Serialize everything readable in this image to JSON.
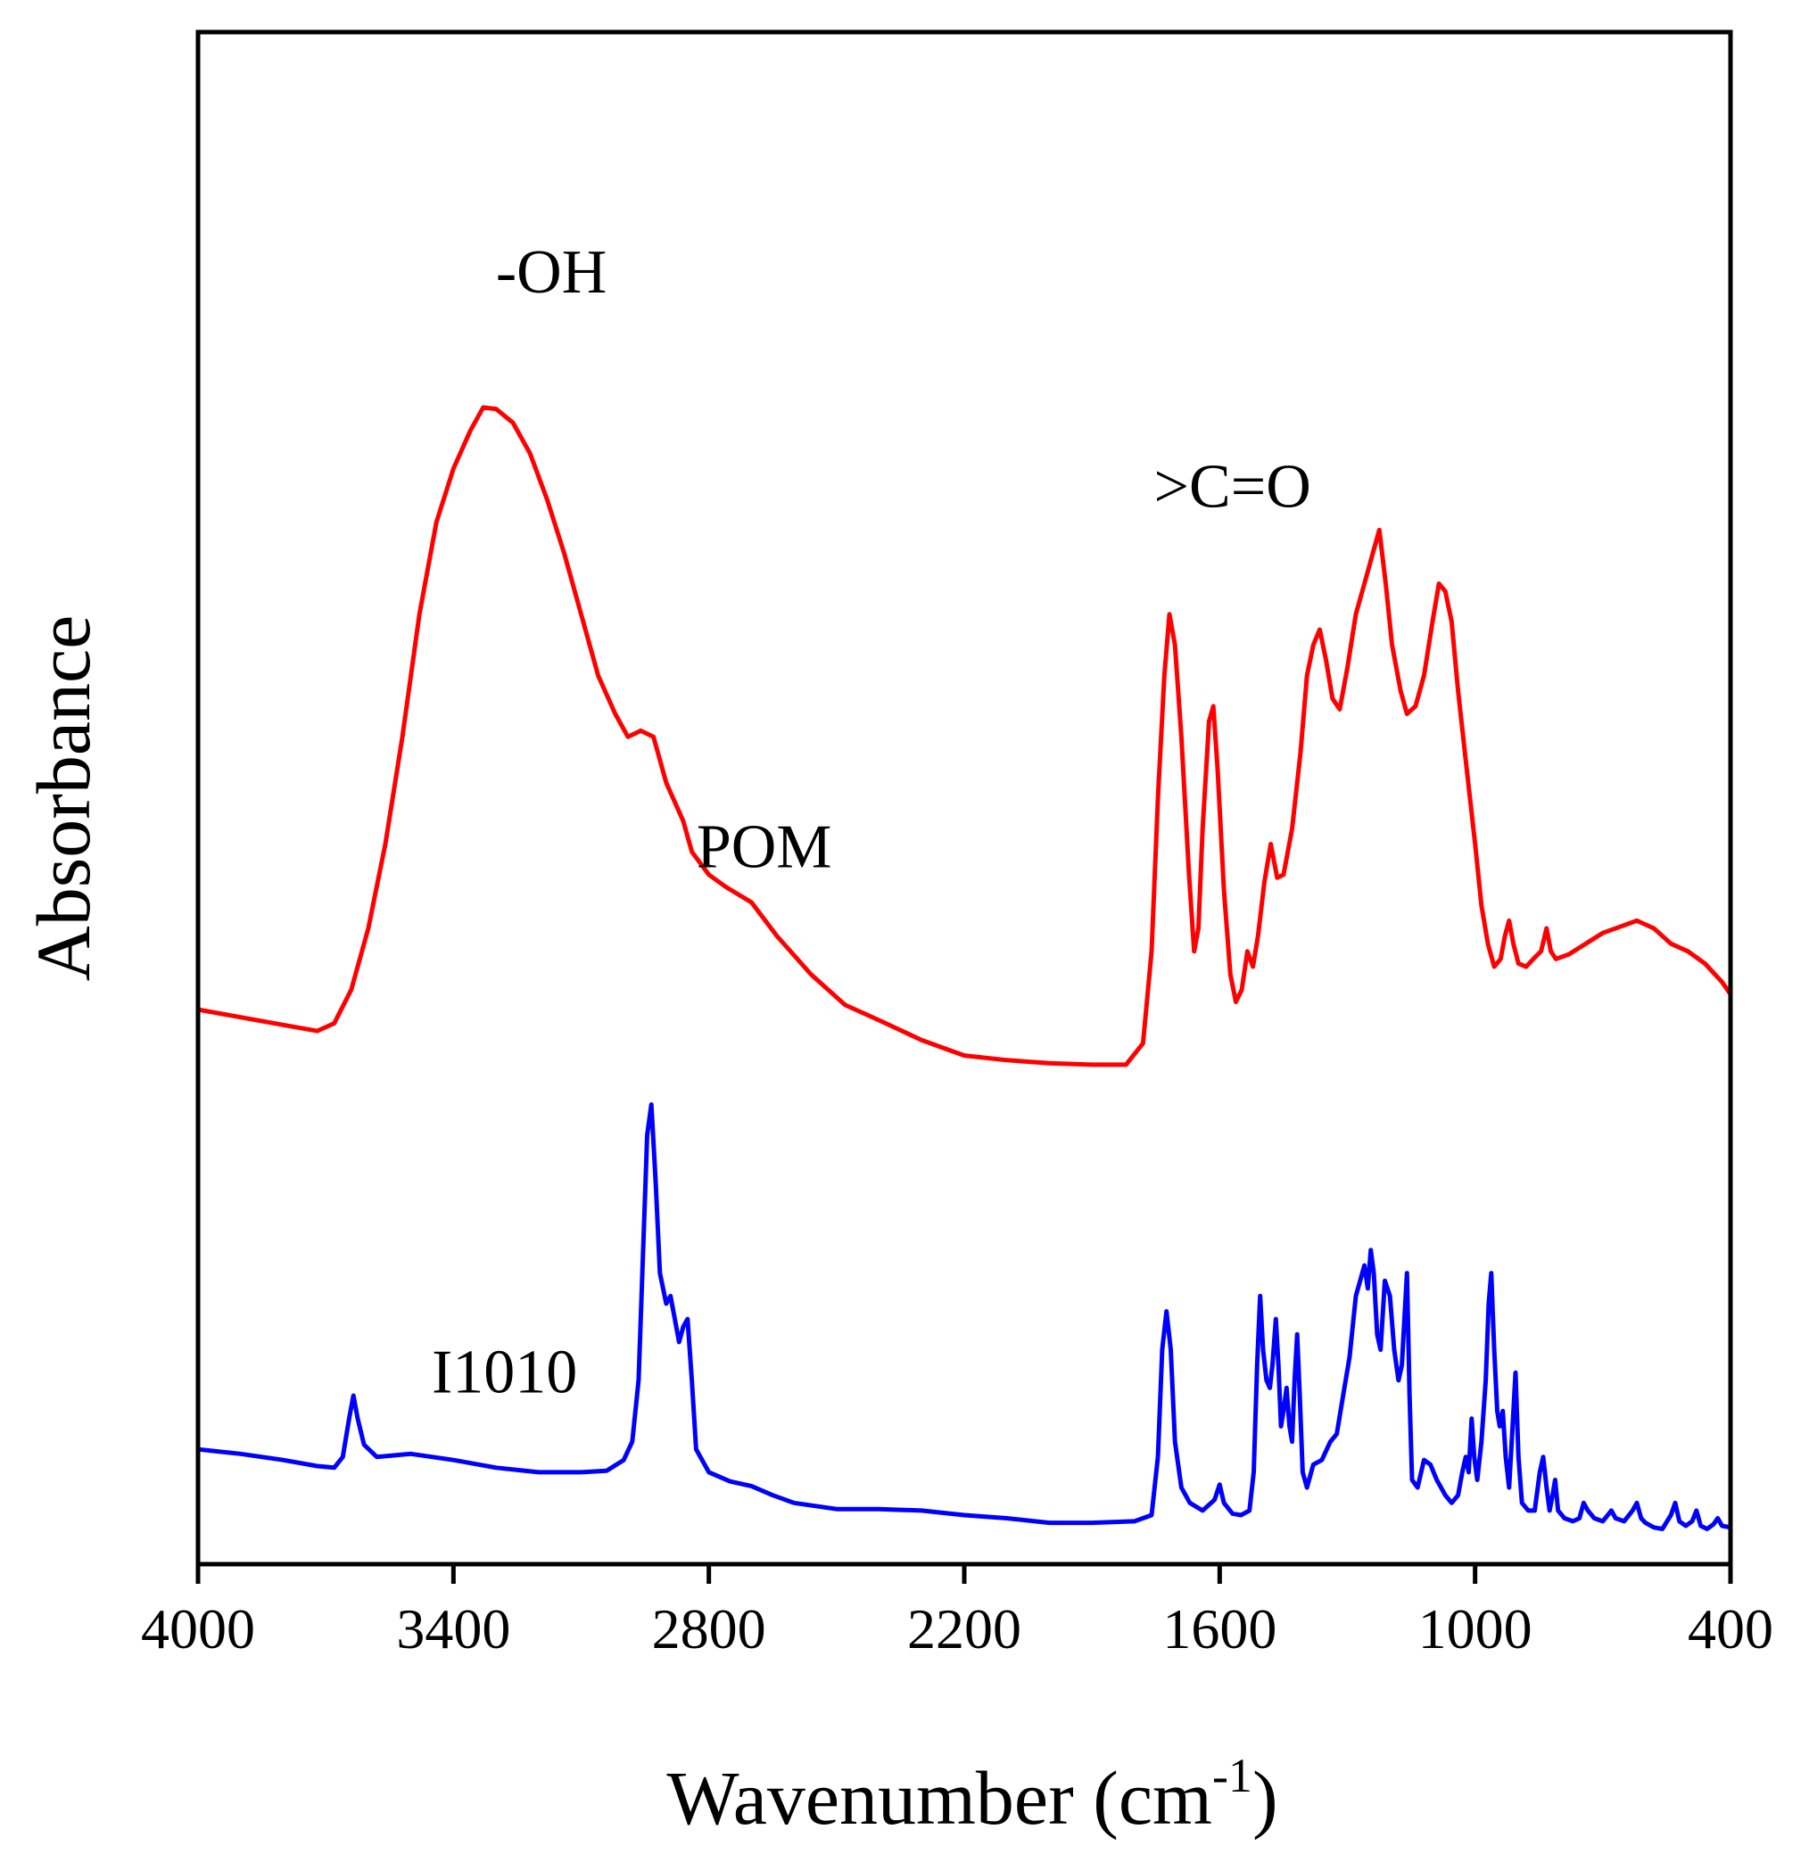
{
  "chart_data": {
    "type": "line",
    "title": "",
    "xlabel": "Wavenumber (cm",
    "xlabel_sup": "-1",
    "xlabel_close": ")",
    "ylabel": "Absorbance",
    "xlim": [
      4000,
      400
    ],
    "x_reversed": true,
    "ylim": [
      0,
      100
    ],
    "y_ticks_shown": false,
    "xticks": [
      "4000",
      "3400",
      "2800",
      "2200",
      "1600",
      "1000",
      "400"
    ],
    "series": [
      {
        "name": "POM",
        "color": "#ff0000",
        "points": [
          [
            4000,
            36.2
          ],
          [
            3900,
            35.7
          ],
          [
            3800,
            35.2
          ],
          [
            3720,
            34.8
          ],
          [
            3680,
            35.3
          ],
          [
            3640,
            37.5
          ],
          [
            3600,
            41.5
          ],
          [
            3560,
            47.0
          ],
          [
            3520,
            54.0
          ],
          [
            3480,
            62.0
          ],
          [
            3440,
            68.0
          ],
          [
            3400,
            71.5
          ],
          [
            3360,
            74.0
          ],
          [
            3330,
            75.5
          ],
          [
            3300,
            75.4
          ],
          [
            3260,
            74.5
          ],
          [
            3220,
            72.5
          ],
          [
            3180,
            69.5
          ],
          [
            3140,
            66.0
          ],
          [
            3100,
            62.0
          ],
          [
            3060,
            58.0
          ],
          [
            3020,
            55.5
          ],
          [
            2990,
            54.0
          ],
          [
            2960,
            54.4
          ],
          [
            2930,
            54.0
          ],
          [
            2900,
            51.0
          ],
          [
            2860,
            48.5
          ],
          [
            2840,
            46.5
          ],
          [
            2800,
            45.0
          ],
          [
            2760,
            44.2
          ],
          [
            2700,
            43.2
          ],
          [
            2640,
            41.0
          ],
          [
            2560,
            38.5
          ],
          [
            2480,
            36.5
          ],
          [
            2400,
            35.5
          ],
          [
            2300,
            34.2
          ],
          [
            2200,
            33.2
          ],
          [
            2100,
            32.9
          ],
          [
            2000,
            32.7
          ],
          [
            1900,
            32.6
          ],
          [
            1820,
            32.6
          ],
          [
            1780,
            34.0
          ],
          [
            1760,
            40.0
          ],
          [
            1745,
            50.0
          ],
          [
            1730,
            58.0
          ],
          [
            1718,
            62.0
          ],
          [
            1705,
            60.0
          ],
          [
            1690,
            54.0
          ],
          [
            1672,
            45.0
          ],
          [
            1660,
            40.0
          ],
          [
            1650,
            41.5
          ],
          [
            1640,
            48.0
          ],
          [
            1625,
            55.0
          ],
          [
            1615,
            56.0
          ],
          [
            1605,
            52.0
          ],
          [
            1590,
            44.0
          ],
          [
            1575,
            38.5
          ],
          [
            1562,
            36.7
          ],
          [
            1548,
            37.5
          ],
          [
            1535,
            40.0
          ],
          [
            1522,
            39.0
          ],
          [
            1510,
            41.0
          ],
          [
            1495,
            44.5
          ],
          [
            1480,
            47.0
          ],
          [
            1465,
            44.8
          ],
          [
            1450,
            45.0
          ],
          [
            1430,
            48.0
          ],
          [
            1410,
            53.0
          ],
          [
            1395,
            58.0
          ],
          [
            1380,
            60.0
          ],
          [
            1365,
            61.0
          ],
          [
            1350,
            59.0
          ],
          [
            1335,
            56.5
          ],
          [
            1318,
            55.8
          ],
          [
            1300,
            58.5
          ],
          [
            1280,
            62.0
          ],
          [
            1260,
            64.0
          ],
          [
            1240,
            66.0
          ],
          [
            1225,
            67.5
          ],
          [
            1210,
            64.0
          ],
          [
            1195,
            60.0
          ],
          [
            1175,
            57.0
          ],
          [
            1160,
            55.5
          ],
          [
            1140,
            56.0
          ],
          [
            1120,
            58.0
          ],
          [
            1100,
            61.5
          ],
          [
            1085,
            64.0
          ],
          [
            1070,
            63.5
          ],
          [
            1055,
            61.5
          ],
          [
            1040,
            57.0
          ],
          [
            1020,
            52.0
          ],
          [
            1000,
            47.0
          ],
          [
            985,
            43.0
          ],
          [
            970,
            40.5
          ],
          [
            955,
            39.0
          ],
          [
            940,
            39.5
          ],
          [
            930,
            41.0
          ],
          [
            920,
            42.0
          ],
          [
            910,
            40.5
          ],
          [
            898,
            39.2
          ],
          [
            880,
            39.0
          ],
          [
            860,
            39.6
          ],
          [
            845,
            40.0
          ],
          [
            832,
            41.5
          ],
          [
            822,
            40.0
          ],
          [
            810,
            39.5
          ],
          [
            780,
            39.8
          ],
          [
            740,
            40.5
          ],
          [
            700,
            41.2
          ],
          [
            660,
            41.6
          ],
          [
            620,
            42.0
          ],
          [
            580,
            41.5
          ],
          [
            540,
            40.5
          ],
          [
            500,
            40.0
          ],
          [
            460,
            39.2
          ],
          [
            420,
            38.0
          ],
          [
            400,
            37.2
          ]
        ]
      },
      {
        "name": "I1010",
        "color": "#0000ff",
        "points": [
          [
            4000,
            7.5
          ],
          [
            3900,
            7.2
          ],
          [
            3800,
            6.8
          ],
          [
            3720,
            6.4
          ],
          [
            3680,
            6.3
          ],
          [
            3660,
            7.0
          ],
          [
            3645,
            9.5
          ],
          [
            3635,
            11.0
          ],
          [
            3625,
            9.5
          ],
          [
            3610,
            7.8
          ],
          [
            3580,
            7.0
          ],
          [
            3500,
            7.2
          ],
          [
            3400,
            6.8
          ],
          [
            3300,
            6.3
          ],
          [
            3200,
            6.0
          ],
          [
            3100,
            6.0
          ],
          [
            3040,
            6.1
          ],
          [
            3000,
            6.8
          ],
          [
            2980,
            8.0
          ],
          [
            2965,
            12.0
          ],
          [
            2955,
            20.0
          ],
          [
            2945,
            28.0
          ],
          [
            2935,
            30.0
          ],
          [
            2925,
            25.0
          ],
          [
            2915,
            19.0
          ],
          [
            2900,
            17.0
          ],
          [
            2890,
            17.5
          ],
          [
            2880,
            16.0
          ],
          [
            2870,
            14.5
          ],
          [
            2860,
            15.5
          ],
          [
            2850,
            16.0
          ],
          [
            2840,
            12.0
          ],
          [
            2830,
            7.5
          ],
          [
            2800,
            6.0
          ],
          [
            2750,
            5.4
          ],
          [
            2700,
            5.1
          ],
          [
            2650,
            4.5
          ],
          [
            2600,
            4.0
          ],
          [
            2500,
            3.6
          ],
          [
            2400,
            3.6
          ],
          [
            2300,
            3.5
          ],
          [
            2200,
            3.2
          ],
          [
            2100,
            3.0
          ],
          [
            2000,
            2.7
          ],
          [
            1900,
            2.7
          ],
          [
            1800,
            2.8
          ],
          [
            1760,
            3.2
          ],
          [
            1745,
            7.0
          ],
          [
            1735,
            14.0
          ],
          [
            1725,
            16.5
          ],
          [
            1715,
            14.0
          ],
          [
            1705,
            8.0
          ],
          [
            1690,
            5.0
          ],
          [
            1670,
            4.0
          ],
          [
            1640,
            3.5
          ],
          [
            1612,
            4.2
          ],
          [
            1600,
            5.2
          ],
          [
            1590,
            4.0
          ],
          [
            1570,
            3.3
          ],
          [
            1550,
            3.2
          ],
          [
            1530,
            3.5
          ],
          [
            1520,
            6.0
          ],
          [
            1512,
            13.0
          ],
          [
            1505,
            17.5
          ],
          [
            1498,
            14.0
          ],
          [
            1490,
            12.0
          ],
          [
            1482,
            11.5
          ],
          [
            1476,
            13.0
          ],
          [
            1468,
            16.0
          ],
          [
            1462,
            13.0
          ],
          [
            1456,
            9.0
          ],
          [
            1450,
            10.0
          ],
          [
            1443,
            11.5
          ],
          [
            1436,
            9.0
          ],
          [
            1430,
            8.0
          ],
          [
            1424,
            12.0
          ],
          [
            1418,
            15.0
          ],
          [
            1412,
            11.0
          ],
          [
            1405,
            6.0
          ],
          [
            1395,
            5.0
          ],
          [
            1380,
            6.5
          ],
          [
            1360,
            6.8
          ],
          [
            1340,
            8.0
          ],
          [
            1325,
            8.5
          ],
          [
            1310,
            11.0
          ],
          [
            1295,
            13.5
          ],
          [
            1280,
            17.5
          ],
          [
            1270,
            18.5
          ],
          [
            1260,
            19.5
          ],
          [
            1252,
            18.0
          ],
          [
            1245,
            20.5
          ],
          [
            1238,
            19.0
          ],
          [
            1230,
            15.0
          ],
          [
            1222,
            14.0
          ],
          [
            1212,
            18.5
          ],
          [
            1200,
            17.5
          ],
          [
            1190,
            14.0
          ],
          [
            1180,
            12.0
          ],
          [
            1172,
            13.0
          ],
          [
            1165,
            16.5
          ],
          [
            1160,
            19.0
          ],
          [
            1154,
            11.0
          ],
          [
            1148,
            5.5
          ],
          [
            1135,
            5.0
          ],
          [
            1120,
            6.8
          ],
          [
            1105,
            6.5
          ],
          [
            1090,
            5.5
          ],
          [
            1070,
            4.5
          ],
          [
            1055,
            4.0
          ],
          [
            1040,
            4.5
          ],
          [
            1030,
            6.0
          ],
          [
            1022,
            7.0
          ],
          [
            1015,
            6.0
          ],
          [
            1008,
            9.5
          ],
          [
            1002,
            7.0
          ],
          [
            995,
            5.5
          ],
          [
            985,
            8.0
          ],
          [
            975,
            12.0
          ],
          [
            968,
            17.0
          ],
          [
            962,
            19.0
          ],
          [
            955,
            14.0
          ],
          [
            948,
            10.0
          ],
          [
            942,
            9.0
          ],
          [
            935,
            10.0
          ],
          [
            928,
            7.0
          ],
          [
            920,
            5.0
          ],
          [
            912,
            9.0
          ],
          [
            905,
            12.5
          ],
          [
            898,
            7.0
          ],
          [
            890,
            4.0
          ],
          [
            875,
            3.5
          ],
          [
            860,
            3.5
          ],
          [
            848,
            6.0
          ],
          [
            840,
            7.0
          ],
          [
            832,
            5.0
          ],
          [
            825,
            3.5
          ],
          [
            818,
            4.5
          ],
          [
            812,
            5.5
          ],
          [
            805,
            3.5
          ],
          [
            790,
            3.0
          ],
          [
            770,
            2.8
          ],
          [
            755,
            3.0
          ],
          [
            745,
            4.0
          ],
          [
            735,
            3.5
          ],
          [
            720,
            3.0
          ],
          [
            700,
            2.8
          ],
          [
            680,
            3.5
          ],
          [
            670,
            3.0
          ],
          [
            650,
            2.8
          ],
          [
            630,
            3.5
          ],
          [
            620,
            4.0
          ],
          [
            610,
            3.0
          ],
          [
            600,
            2.7
          ],
          [
            580,
            2.4
          ],
          [
            560,
            2.3
          ],
          [
            540,
            3.2
          ],
          [
            530,
            4.0
          ],
          [
            520,
            2.8
          ],
          [
            505,
            2.5
          ],
          [
            490,
            2.8
          ],
          [
            480,
            3.5
          ],
          [
            470,
            2.5
          ],
          [
            455,
            2.3
          ],
          [
            440,
            2.6
          ],
          [
            430,
            3.0
          ],
          [
            420,
            2.5
          ],
          [
            400,
            2.4
          ]
        ]
      }
    ],
    "annotations": [
      {
        "text": "-OH",
        "x": 3170,
        "y": 83
      },
      {
        "text": ">C=O",
        "x": 1570,
        "y": 69
      },
      {
        "text": "POM",
        "x": 2670,
        "y": 45.5
      },
      {
        "text": "I1010",
        "x": 3280,
        "y": 11.2
      }
    ]
  }
}
